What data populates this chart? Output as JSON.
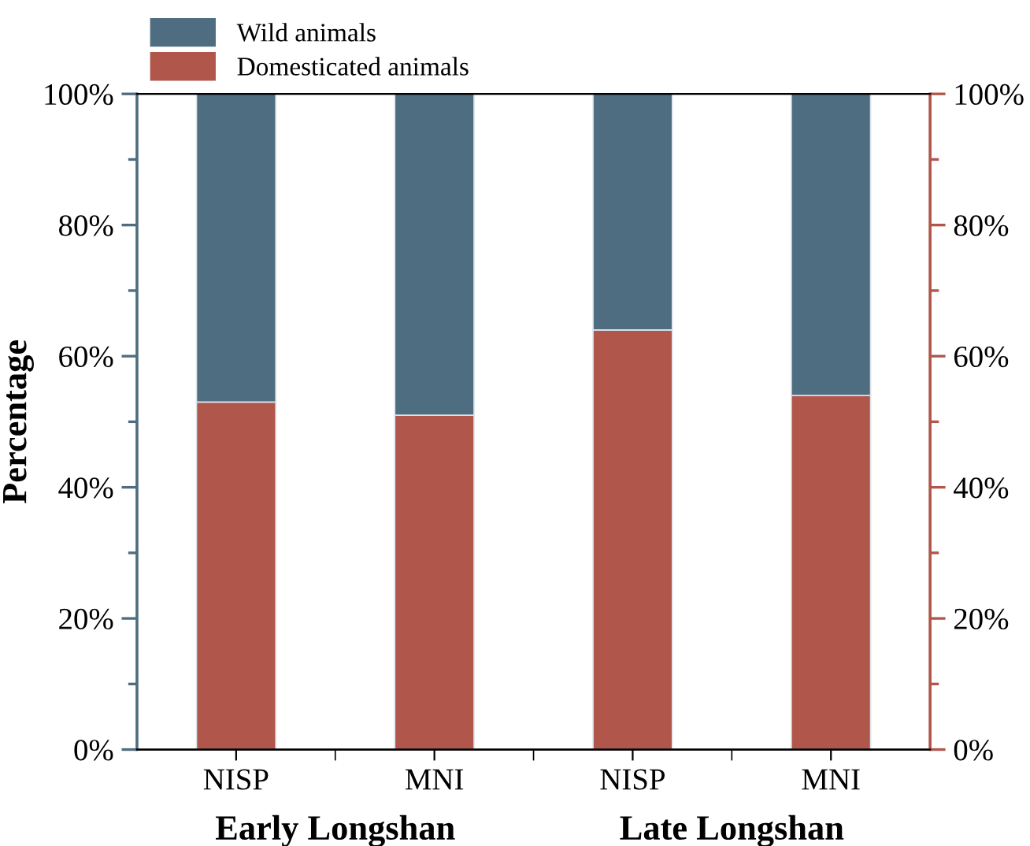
{
  "chart_data": {
    "type": "bar",
    "stacked": true,
    "ylabel": "Percentage",
    "categories": [
      "NISP",
      "MNI",
      "NISP",
      "MNI"
    ],
    "series": [
      {
        "name": "Domesticated animals",
        "color": "#b0564a",
        "values": [
          53,
          51,
          64,
          54
        ]
      },
      {
        "name": "Wild animals",
        "color": "#4f6d80",
        "values": [
          47,
          49,
          36,
          46
        ]
      }
    ],
    "ylim": [
      0,
      100
    ],
    "yticks": [
      {
        "value": 0,
        "label": "0%"
      },
      {
        "value": 20,
        "label": "20%"
      },
      {
        "value": 40,
        "label": "40%"
      },
      {
        "value": 60,
        "label": "60%"
      },
      {
        "value": 80,
        "label": "80%"
      },
      {
        "value": 100,
        "label": "100%"
      }
    ],
    "y2lim": [
      0,
      100
    ],
    "y2ticks": [
      {
        "value": 0,
        "label": "0%"
      },
      {
        "value": 20,
        "label": "20%"
      },
      {
        "value": 40,
        "label": "40%"
      },
      {
        "value": 60,
        "label": "60%"
      },
      {
        "value": 80,
        "label": "80%"
      },
      {
        "value": 100,
        "label": "100%"
      }
    ],
    "annotations": [
      "Early Longshan",
      "Late Longshan"
    ],
    "legend": "top left",
    "grid": false
  }
}
